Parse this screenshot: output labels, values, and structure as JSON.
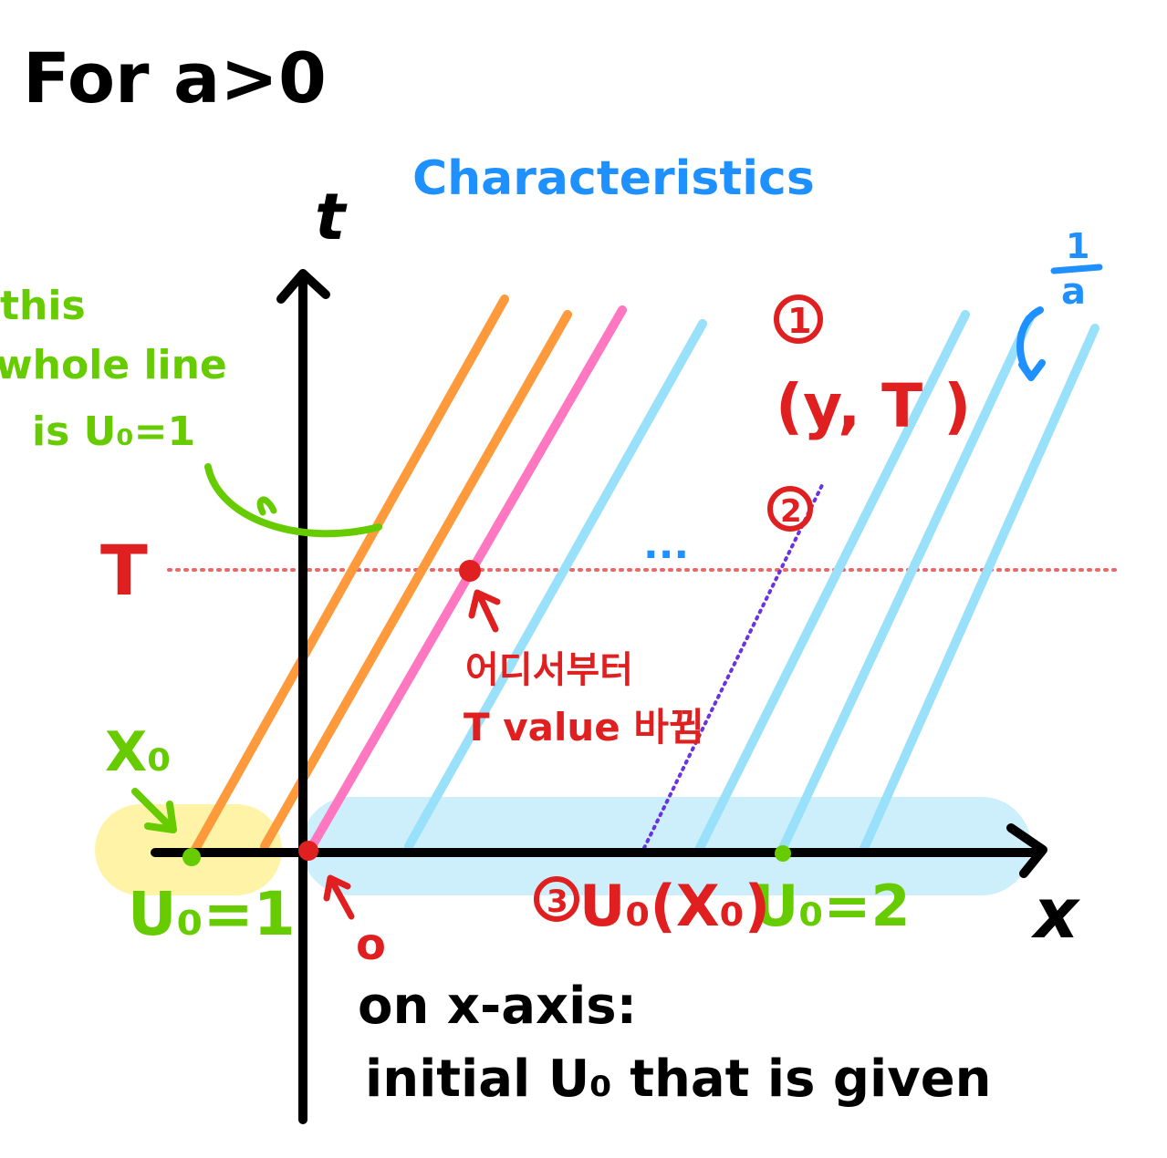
{
  "title": "For a>0",
  "heading": "Characteristics",
  "axes": {
    "x_label": "x",
    "t_label": "t"
  },
  "T_label": "T",
  "green_note": [
    "this",
    "whole line",
    "is U₀=1"
  ],
  "x0_label": "X₀",
  "u0_left": "U₀=1",
  "u0_right": "U₀=2",
  "origin_label": "o",
  "slope_label": {
    "num": "1",
    "den": "a"
  },
  "point_note": {
    "circle1": "1",
    "coord": "(y, T )",
    "circle2": "2",
    "circle3": "3",
    "u0x0": "U₀(X₀)"
  },
  "korean_note": [
    "어디서부터",
    "T value 바뀜"
  ],
  "dots": "...",
  "bottom_note": [
    "on x-axis:",
    "initial U₀ that is given"
  ],
  "colors": {
    "black": "#000000",
    "green": "#66cc00",
    "red": "#e02020",
    "blue_text": "#1e90ff",
    "orange": "#ff9a3c",
    "pink": "#ff77c0",
    "light_blue": "#99e0fa",
    "yellow_band": "#fff3a8",
    "blue_band": "#cdeefb",
    "purple": "#6a32e0",
    "dotted_red": "#ee6666"
  }
}
